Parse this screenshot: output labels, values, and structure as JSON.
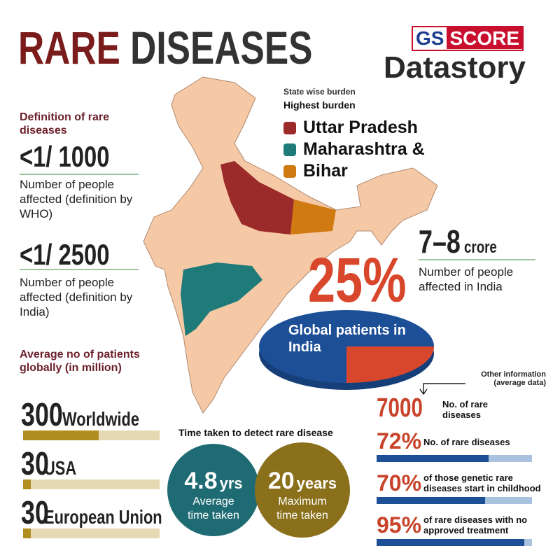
{
  "header": {
    "title_accent": "RARE",
    "title": "DISEASES",
    "brand_left": "GS",
    "brand_right": "SCORE",
    "brand_sub": "Datastory"
  },
  "state_burden": {
    "label": "State wise burden",
    "subtitle": "Highest burden",
    "states": [
      {
        "name": "Uttar Pradesh",
        "color": "#9b2a2a"
      },
      {
        "name": "Maharashtra &",
        "color": "#1f7a7a"
      },
      {
        "name": "Bihar",
        "color": "#d07a12"
      }
    ]
  },
  "definition": {
    "title": "Definition of rare diseases",
    "items": [
      {
        "value": "<1/ 1000",
        "text": "Number of people affected (definition by WHO)"
      },
      {
        "value": "<1/ 2500",
        "text": "Number of people affected (definition by India)"
      }
    ]
  },
  "patients": {
    "title": "Average no of patients globally (in million)",
    "items": [
      {
        "value": 300,
        "label": "Worldwide"
      },
      {
        "value": 30,
        "label": "USA"
      },
      {
        "value": 30,
        "label": "European Union"
      }
    ]
  },
  "india": {
    "value": "7–8",
    "unit": "crore",
    "text": "Number of people affected in India"
  },
  "global": {
    "value": 25,
    "value_label": "25%",
    "text": "Global patients in India"
  },
  "detect": {
    "title": "Time taken to detect rare disease",
    "items": [
      {
        "value": "4.8",
        "unit": "yrs",
        "text": "Average time taken"
      },
      {
        "value": "20",
        "unit": "years",
        "text": "Maximum time taken"
      }
    ]
  },
  "other": {
    "title": "Other information (average data)",
    "count": {
      "value": "7000",
      "text": "No. of rare diseases"
    },
    "stats": [
      {
        "value": 72,
        "value_label": "72%",
        "text": "No. of rare diseases"
      },
      {
        "value": 70,
        "value_label": "70%",
        "text": "of those genetic rare diseases start in childhood"
      },
      {
        "value": 95,
        "value_label": "95%",
        "text": "of rare diseases with no approved treatment"
      }
    ]
  }
}
